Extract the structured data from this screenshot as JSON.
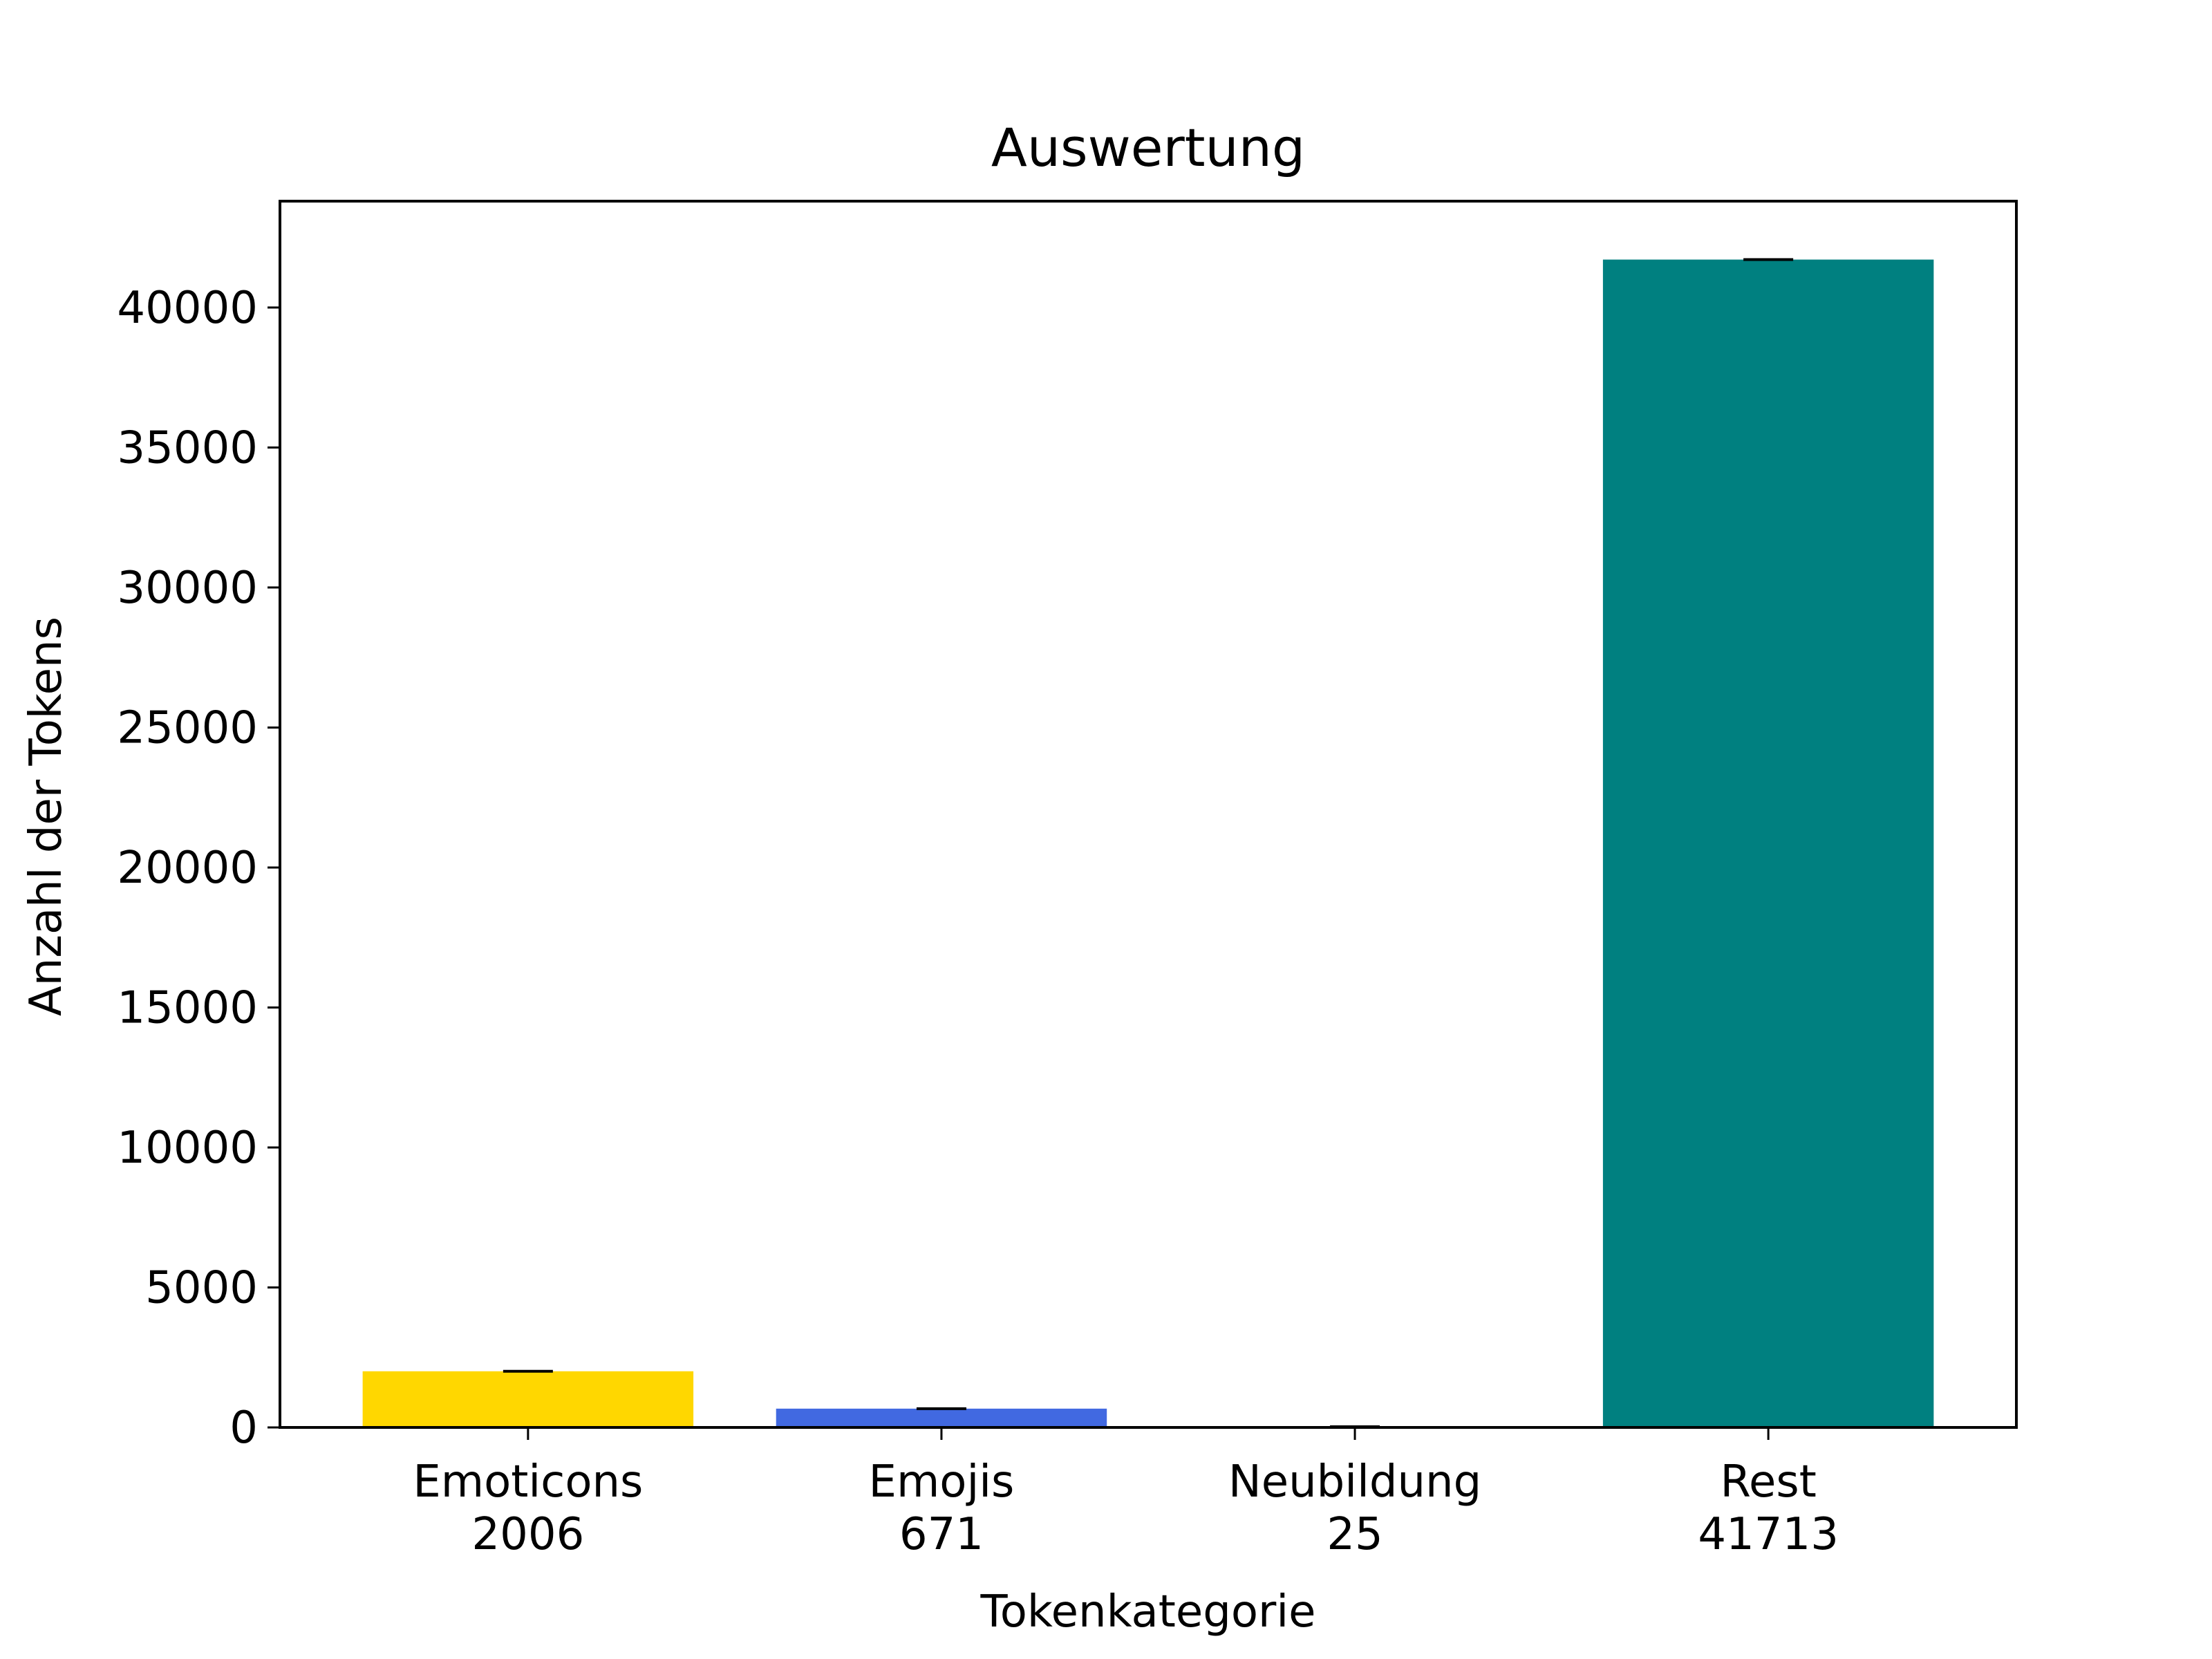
{
  "chart_data": {
    "type": "bar",
    "title": "Auswertung",
    "xlabel": "Tokenkategorie",
    "ylabel": "Anzahl der Tokens",
    "categories": [
      "Emoticons\n2006",
      "Emojis\n671",
      "Neubildung\n25",
      "Rest\n41713"
    ],
    "values": [
      2006,
      671,
      25,
      41713
    ],
    "colors": [
      "#ffd700",
      "#4169e1",
      "#ffd700",
      "#008080"
    ],
    "error_bars": true,
    "yticks": [
      0,
      5000,
      10000,
      15000,
      20000,
      25000,
      30000,
      35000,
      40000
    ],
    "ylim": [
      0,
      43800
    ],
    "grid": false,
    "legend": false
  }
}
